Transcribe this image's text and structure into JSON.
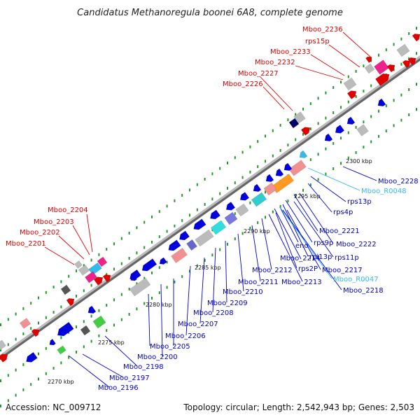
{
  "title": "Candidatus Methanoregula boonei 6A8, complete genome",
  "footer": {
    "accession": "Accession: NC_009712",
    "stats": "Topology: circular; Length: 2,542,943 bp; Genes: 2,503"
  },
  "colors": {
    "forward_label": "#e00000",
    "reverse_label": "#0000cc",
    "rna_label": "#33bbee",
    "backbone": "#888888",
    "dot": "#229922"
  },
  "ticks": [
    "2270 kbp",
    "2275 kbp",
    "2280 kbp",
    "2285 kbp",
    "2290 kbp",
    "2295 kbp",
    "2300 kbp"
  ],
  "labels_top": [
    "Mboo_2236",
    "rps15p",
    "Mboo_2233",
    "Mboo_2232",
    "Mboo_2227",
    "Mboo_2226"
  ],
  "labels_left": [
    "Mboo_2204",
    "Mboo_2203",
    "Mboo_2202",
    "Mboo_2201"
  ],
  "labels_right": [
    "Mboo_2228",
    "Mboo_R0048",
    "rps13p",
    "rps4p",
    "Mboo_2221",
    "Mboo_2222",
    "rps9p",
    "rps11p",
    "rpl13p",
    "eno",
    "Mboo_2214",
    "Mboo_2217",
    "rps2P",
    "Mboo_R0047",
    "Mboo_2213",
    "Mboo_2218",
    "Mboo_2212",
    "Mboo_2211",
    "Mboo_2210",
    "Mboo_2209",
    "Mboo_2208",
    "Mboo_2207",
    "Mboo_2206",
    "Mboo_2205",
    "Mboo_2200",
    "Mboo_2198",
    "Mboo_2197",
    "Mboo_2196"
  ]
}
